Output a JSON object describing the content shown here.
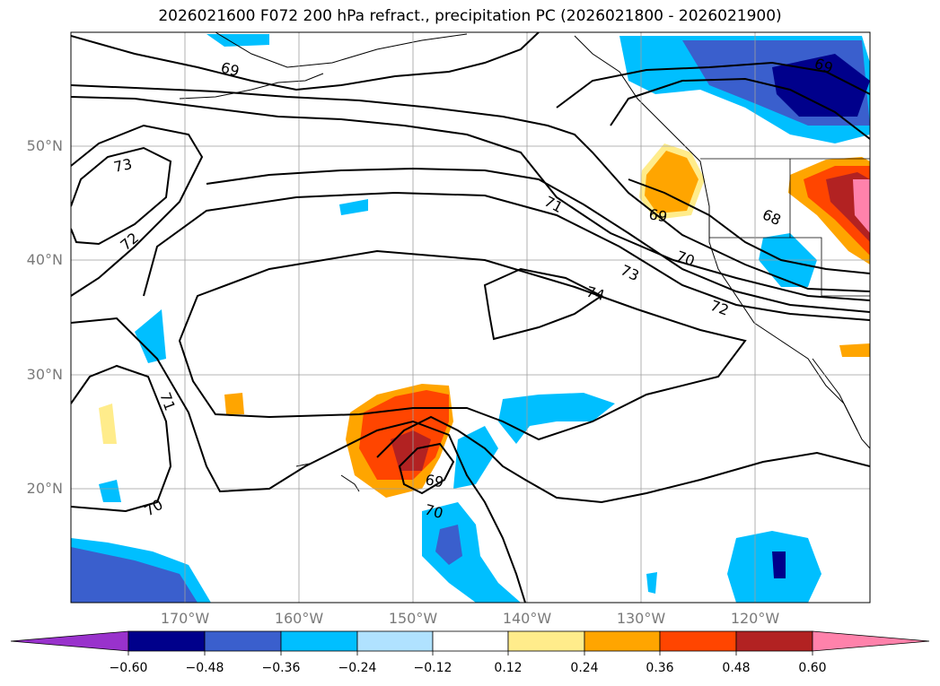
{
  "title": "2026021600 F072 200 hPa refract., precipitation PC (2026021800 - 2026021900)",
  "map": {
    "lon_range": [
      -180,
      -110
    ],
    "lat_range": [
      10,
      60
    ],
    "lat_labels": [
      "50°N",
      "40°N",
      "30°N",
      "20°N"
    ],
    "lon_labels": [
      "170°W",
      "160°W",
      "150°W",
      "140°W",
      "130°W",
      "120°W"
    ],
    "contour_labels": [
      "69",
      "73",
      "72",
      "71",
      "70",
      "71",
      "73",
      "74",
      "72",
      "70",
      "69",
      "68",
      "69",
      "69",
      "70"
    ],
    "grid": true
  },
  "colorbar": {
    "ticks": [
      "−0.60",
      "−0.48",
      "−0.36",
      "−0.24",
      "−0.12",
      "0.12",
      "0.24",
      "0.36",
      "0.48",
      "0.60"
    ],
    "colors": [
      "#9932cc",
      "#00008b",
      "#3a5fcd",
      "#00bfff",
      "#b0e2ff",
      "#ffffff",
      "#ffec8b",
      "#ffa500",
      "#ff4500",
      "#b22222",
      "#ff82ab"
    ]
  }
}
